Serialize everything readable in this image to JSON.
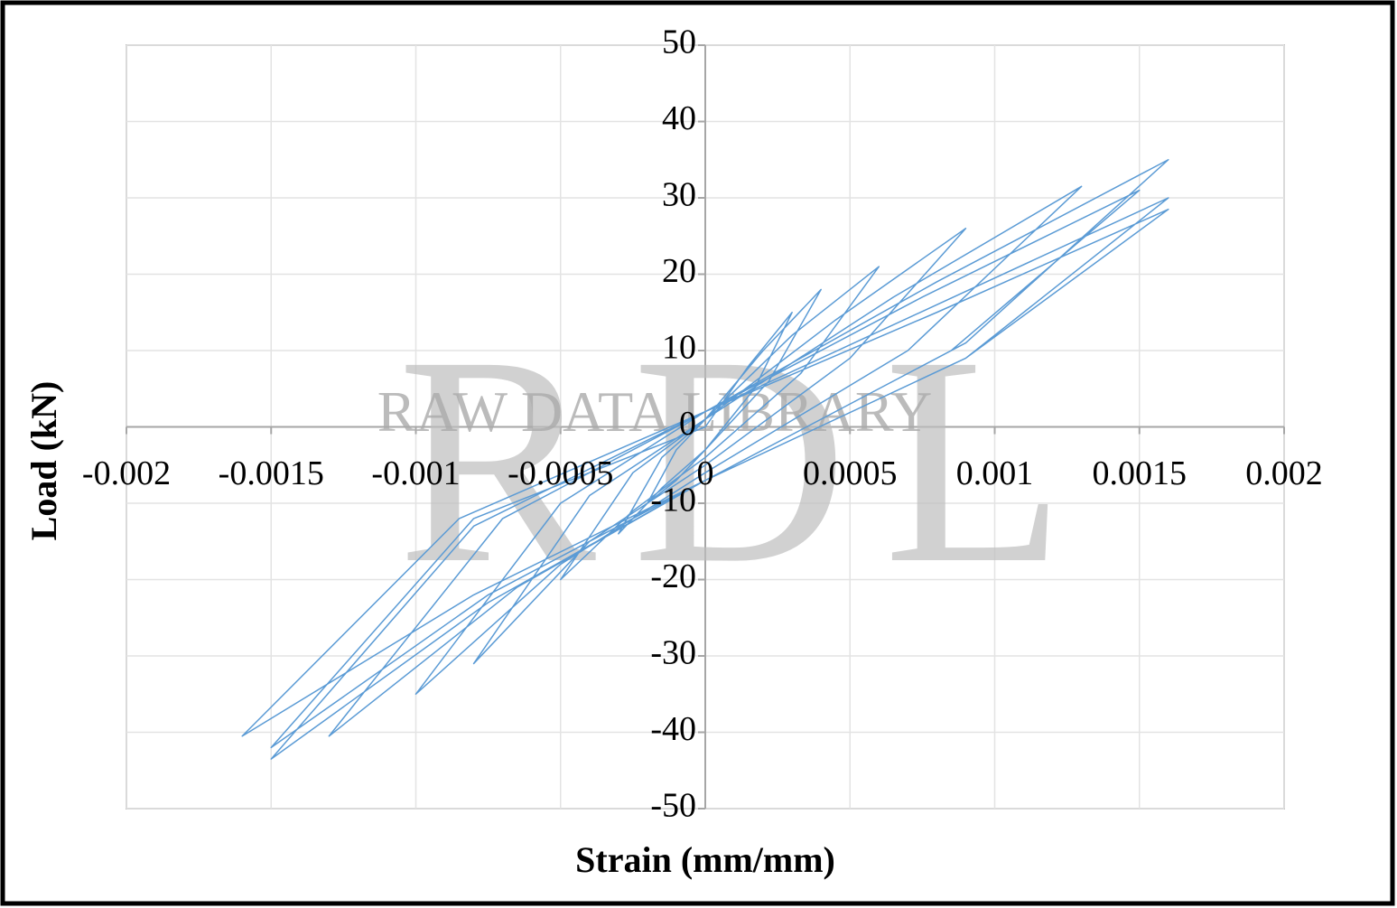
{
  "chart_data": {
    "type": "line",
    "xlabel": "Strain (mm/mm)",
    "ylabel": "Load (kN)",
    "watermark": {
      "letters": "RDL",
      "text": "RAW DATA LIBRARY"
    },
    "xlim": [
      -0.002,
      0.002
    ],
    "xticks": [
      -0.002,
      -0.0015,
      -0.001,
      -0.0005,
      0,
      0.0005,
      0.001,
      0.0015,
      0.002
    ],
    "ylim": [
      -50,
      50
    ],
    "yticks": [
      -50,
      -40,
      -30,
      -20,
      -10,
      0,
      10,
      20,
      30,
      40,
      50
    ],
    "grid": true,
    "series": [
      {
        "color": "#5b9bd5",
        "x": [
          0,
          0.00015,
          0.0003,
          0.00017,
          0,
          -0.0001,
          -0.0002,
          -0.0001,
          0,
          0.0002,
          0.0004,
          0.00022,
          0,
          -0.00015,
          -0.0003,
          -0.00015,
          0,
          0.0003,
          0.0006,
          0.00033,
          0,
          -0.00025,
          -0.0005,
          -0.00025,
          0,
          0.00045,
          0.0009,
          0.0005,
          0,
          -0.0004,
          -0.0008,
          -0.0004,
          0,
          0.00065,
          0.0013,
          0.0007,
          0,
          -0.0005,
          -0.001,
          -0.0005,
          0,
          0.0008,
          0.0016,
          0.0009,
          0,
          -0.00065,
          -0.0013,
          -0.0007,
          0,
          0.00075,
          0.0015,
          0.00085,
          0,
          -0.00075,
          -0.0015,
          -0.0008,
          0,
          0.0008,
          0.0016,
          0.0009,
          0,
          -0.0008,
          -0.0016,
          -0.00085,
          0,
          0.0008,
          0.0016,
          0.0009,
          0,
          -0.00075,
          -0.0015,
          -0.0008,
          0
        ],
        "values": [
          0,
          8,
          15,
          5,
          -3,
          -7,
          -10,
          -3,
          1,
          10,
          18,
          6,
          -3,
          -8,
          -14,
          -4,
          1,
          12,
          21,
          7,
          -4,
          -11,
          -20,
          -6,
          1,
          14,
          26,
          9,
          -5,
          -15,
          -31,
          -9,
          1,
          17,
          31.5,
          10,
          -6,
          -18,
          -35,
          -10,
          2,
          19,
          35,
          11,
          -7,
          -21,
          -40.5,
          -12,
          2,
          17,
          31,
          10,
          -7,
          -23,
          -43.5,
          -13,
          2,
          16,
          30,
          9,
          -7,
          -22,
          -40.5,
          -12,
          2,
          15,
          28.5,
          9,
          -7,
          -22,
          -42,
          -12,
          0
        ]
      }
    ]
  }
}
